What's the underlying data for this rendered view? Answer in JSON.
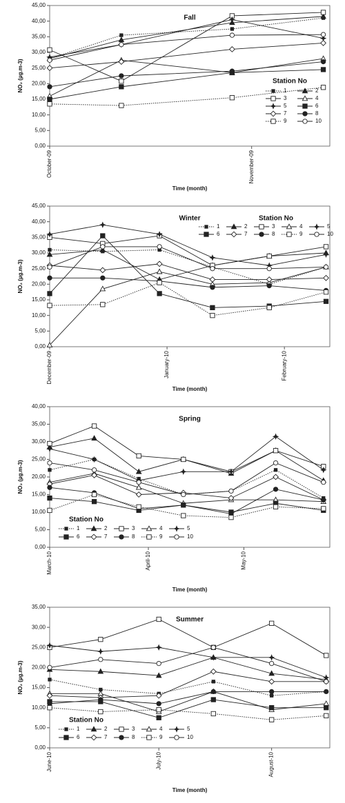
{
  "chart_data": [
    {
      "type": "line",
      "title": "Fall",
      "ylabel": "NO₂ (µg.m-3)",
      "xlabel": "Time (month)",
      "legend_title": "Station No",
      "legend": "lower right",
      "x": [
        0,
        11,
        28,
        42
      ],
      "xlim": [
        0,
        43
      ],
      "xticks": [
        {
          "value": 0,
          "label": "October-09"
        },
        {
          "value": 31,
          "label": "November-09"
        }
      ],
      "ylim": [
        0,
        45
      ],
      "yticks": [
        {
          "value": 0,
          "label": "0,00"
        },
        {
          "value": 5,
          "label": "5,00"
        },
        {
          "value": 10,
          "label": "10,00"
        },
        {
          "value": 15,
          "label": "15,00"
        },
        {
          "value": 20,
          "label": "20,00"
        },
        {
          "value": 25,
          "label": "25,00"
        },
        {
          "value": 30,
          "label": "30,00"
        },
        {
          "value": 35,
          "label": "35,00"
        },
        {
          "value": 40,
          "label": "40,00"
        },
        {
          "value": 45,
          "label": "45,00"
        }
      ],
      "series": [
        {
          "name": "1",
          "color": "#222222",
          "marker": "square-small",
          "dash": "dotted",
          "values": [
            28,
            35.5,
            37.5,
            41
          ]
        },
        {
          "name": "2",
          "color": "#222222",
          "marker": "triangle-filled",
          "dash": "solid",
          "values": [
            28,
            34,
            39.5,
            41.5
          ]
        },
        {
          "name": "3",
          "color": "#222222",
          "marker": "square-open",
          "dash": "solid",
          "values": [
            30.8,
            20.8,
            41.7,
            42.8
          ]
        },
        {
          "name": "4",
          "color": "#222222",
          "marker": "triangle-open",
          "dash": "solid",
          "values": [
            16,
            27.5,
            23.5,
            28
          ]
        },
        {
          "name": "5",
          "color": "#222222",
          "marker": "star",
          "dash": "solid",
          "values": [
            28.5,
            32.5,
            40.5,
            34.5
          ]
        },
        {
          "name": "6",
          "color": "#222222",
          "marker": "square-filled",
          "dash": "solid",
          "values": [
            15,
            19,
            23.5,
            24.5
          ]
        },
        {
          "name": "7",
          "color": "#222222",
          "marker": "diamond-open",
          "dash": "solid",
          "values": [
            25,
            27,
            31,
            33
          ]
        },
        {
          "name": "8",
          "color": "#222222",
          "marker": "circle-filled",
          "dash": "solid",
          "values": [
            19,
            22.5,
            24,
            27
          ]
        },
        {
          "name": "9",
          "color": "#222222",
          "marker": "square-open",
          "dash": "dotted",
          "values": [
            13.5,
            13,
            15.5,
            18.8
          ]
        },
        {
          "name": "10",
          "color": "#222222",
          "marker": "circle-open",
          "dash": "solid",
          "values": [
            27.5,
            32.5,
            35.5,
            35.7
          ]
        }
      ]
    },
    {
      "type": "line",
      "title": "Winter",
      "ylabel": "NO₂ (µg.m-3)",
      "xlabel": "Time (month)",
      "legend_title": "Station No",
      "legend": "upper right",
      "x": [
        0,
        14,
        29,
        43,
        58,
        73
      ],
      "xlim": [
        0,
        74
      ],
      "xticks": [
        {
          "value": 0,
          "label": "December-09"
        },
        {
          "value": 31,
          "label": "January-10"
        },
        {
          "value": 62,
          "label": "February-10"
        }
      ],
      "ylim": [
        0,
        45
      ],
      "yticks": [
        {
          "value": 0,
          "label": "0,00"
        },
        {
          "value": 5,
          "label": "5,00"
        },
        {
          "value": 10,
          "label": "10,00"
        },
        {
          "value": 15,
          "label": "15,00"
        },
        {
          "value": 20,
          "label": "20,00"
        },
        {
          "value": 25,
          "label": "25,00"
        },
        {
          "value": 30,
          "label": "30,00"
        },
        {
          "value": 35,
          "label": "35,00"
        },
        {
          "value": 40,
          "label": "40,00"
        },
        {
          "value": 45,
          "label": "45,00"
        }
      ],
      "series": [
        {
          "name": "1",
          "color": "#222222",
          "marker": "square-small",
          "dash": "dotted",
          "values": [
            31,
            30.5,
            31,
            25.5,
            20,
            25.5
          ]
        },
        {
          "name": "2",
          "color": "#222222",
          "marker": "triangle-filled",
          "dash": "solid",
          "values": [
            29.5,
            31,
            21.5,
            26,
            29,
            30
          ]
        },
        {
          "name": "3",
          "color": "#222222",
          "marker": "square-open",
          "dash": "solid",
          "values": [
            35,
            33,
            35.5,
            26,
            29,
            32
          ]
        },
        {
          "name": "4",
          "color": "#222222",
          "marker": "triangle-open",
          "dash": "solid",
          "values": [
            0.5,
            18.5,
            24,
            20,
            20.5,
            25.5
          ]
        },
        {
          "name": "5",
          "color": "#222222",
          "marker": "star",
          "dash": "solid",
          "values": [
            36,
            39,
            36,
            28.5,
            26,
            29.5
          ]
        },
        {
          "name": "6",
          "color": "#222222",
          "marker": "square-filled",
          "dash": "solid",
          "values": [
            17,
            35.5,
            17,
            12.5,
            13,
            14.5
          ]
        },
        {
          "name": "7",
          "color": "#222222",
          "marker": "diamond-open",
          "dash": "solid",
          "values": [
            26,
            24.5,
            26.5,
            21.5,
            21.5,
            22
          ]
        },
        {
          "name": "8",
          "color": "#222222",
          "marker": "circle-filled",
          "dash": "solid",
          "values": [
            22,
            22,
            21,
            19,
            19.5,
            18
          ]
        },
        {
          "name": "9",
          "color": "#222222",
          "marker": "square-open",
          "dash": "dotted",
          "values": [
            13.2,
            13.5,
            20.5,
            10,
            12.5,
            17.5
          ]
        },
        {
          "name": "10",
          "color": "#222222",
          "marker": "circle-open",
          "dash": "solid",
          "values": [
            25.5,
            32,
            32,
            25,
            25,
            25.5
          ]
        }
      ]
    },
    {
      "type": "line",
      "title": "Spring",
      "ylabel": "NO₂ (µg.m-3)",
      "xlabel": "Time (month)",
      "legend_title": "Station No",
      "legend": "lower left",
      "x": [
        0,
        14,
        28,
        42,
        57,
        71,
        86
      ],
      "xlim": [
        0,
        88
      ],
      "xticks": [
        {
          "value": 0,
          "label": "March-10"
        },
        {
          "value": 31,
          "label": "April-10"
        },
        {
          "value": 61,
          "label": "May-10"
        }
      ],
      "ylim": [
        0,
        40
      ],
      "yticks": [
        {
          "value": 0,
          "label": "0,00"
        },
        {
          "value": 5,
          "label": "5,00"
        },
        {
          "value": 10,
          "label": "10,00"
        },
        {
          "value": 15,
          "label": "15,00"
        },
        {
          "value": 20,
          "label": "20,00"
        },
        {
          "value": 25,
          "label": "25,00"
        },
        {
          "value": 30,
          "label": "30,00"
        },
        {
          "value": 35,
          "label": "35,00"
        },
        {
          "value": 40,
          "label": "40,00"
        }
      ],
      "series": [
        {
          "name": "1",
          "color": "#222222",
          "marker": "square-small",
          "dash": "dotted",
          "values": [
            22,
            25,
            19.5,
            15,
            16,
            22,
            14
          ]
        },
        {
          "name": "2",
          "color": "#222222",
          "marker": "triangle-filled",
          "dash": "solid",
          "values": [
            28.5,
            31,
            21.5,
            25,
            21,
            27.5,
            19
          ]
        },
        {
          "name": "3",
          "color": "#222222",
          "marker": "square-open",
          "dash": "solid",
          "values": [
            29.5,
            34.5,
            26,
            25,
            21.5,
            27.5,
            23
          ]
        },
        {
          "name": "4",
          "color": "#222222",
          "marker": "triangle-open",
          "dash": "solid",
          "values": [
            18.5,
            21,
            17,
            12.5,
            13.5,
            13.5,
            13
          ]
        },
        {
          "name": "5",
          "color": "#222222",
          "marker": "star",
          "dash": "solid",
          "values": [
            28,
            25,
            19,
            21.5,
            21.5,
            31.5,
            22
          ]
        },
        {
          "name": "6",
          "color": "#222222",
          "marker": "square-filled",
          "dash": "solid",
          "values": [
            14,
            13,
            10.5,
            12,
            10,
            12.5,
            10.5
          ]
        },
        {
          "name": "7",
          "color": "#222222",
          "marker": "diamond-open",
          "dash": "solid",
          "values": [
            18,
            20.5,
            15,
            15.5,
            14,
            20,
            13.5
          ]
        },
        {
          "name": "8",
          "color": "#222222",
          "marker": "circle-filled",
          "dash": "solid",
          "values": [
            17,
            15.5,
            11,
            12,
            9.5,
            16.5,
            13.5
          ]
        },
        {
          "name": "9",
          "color": "#222222",
          "marker": "square-open",
          "dash": "dotted",
          "values": [
            10.5,
            15,
            11.5,
            9,
            8.5,
            11.5,
            11
          ]
        },
        {
          "name": "10",
          "color": "#222222",
          "marker": "circle-open",
          "dash": "solid",
          "values": [
            24,
            22,
            18.5,
            15,
            16,
            24,
            18.5
          ]
        }
      ]
    },
    {
      "type": "line",
      "title": "Summer",
      "ylabel": "NO₂ (µg.m-3)",
      "xlabel": "Time (month)",
      "legend_title": "Station No",
      "legend": "lower left",
      "x": [
        0,
        14,
        30,
        45,
        61,
        76
      ],
      "xlim": [
        0,
        77
      ],
      "xticks": [
        {
          "value": 0,
          "label": "June-10"
        },
        {
          "value": 30,
          "label": "July-10"
        },
        {
          "value": 61,
          "label": "August-10"
        }
      ],
      "ylim": [
        0,
        35
      ],
      "yticks": [
        {
          "value": 0,
          "label": "0,00"
        },
        {
          "value": 5,
          "label": "5,00"
        },
        {
          "value": 10,
          "label": "10,00"
        },
        {
          "value": 15,
          "label": "15,00"
        },
        {
          "value": 20,
          "label": "20,00"
        },
        {
          "value": 25,
          "label": "25,00"
        },
        {
          "value": 30,
          "label": "30,00"
        },
        {
          "value": 35,
          "label": "35,00"
        }
      ],
      "series": [
        {
          "name": "1",
          "color": "#222222",
          "marker": "square-small",
          "dash": "dotted",
          "values": [
            17,
            14.5,
            13.5,
            16.5,
            13,
            14
          ]
        },
        {
          "name": "2",
          "color": "#222222",
          "marker": "triangle-filled",
          "dash": "solid",
          "values": [
            19.5,
            19,
            18,
            22.5,
            18.5,
            17
          ]
        },
        {
          "name": "3",
          "color": "#222222",
          "marker": "square-open",
          "dash": "solid",
          "values": [
            25,
            27,
            32,
            25,
            31,
            23
          ]
        },
        {
          "name": "4",
          "color": "#222222",
          "marker": "triangle-open",
          "dash": "solid",
          "values": [
            13.5,
            13.5,
            9,
            14,
            9.5,
            11
          ]
        },
        {
          "name": "5",
          "color": "#222222",
          "marker": "star",
          "dash": "solid",
          "values": [
            25.5,
            24,
            25,
            22.5,
            22.5,
            17.5
          ]
        },
        {
          "name": "6",
          "color": "#222222",
          "marker": "square-filled",
          "dash": "solid",
          "values": [
            11.5,
            11.5,
            7.5,
            12,
            10,
            10
          ]
        },
        {
          "name": "7",
          "color": "#222222",
          "marker": "diamond-open",
          "dash": "solid",
          "values": [
            13,
            12.5,
            13,
            19,
            16.5,
            16.5
          ]
        },
        {
          "name": "8",
          "color": "#222222",
          "marker": "circle-filled",
          "dash": "solid",
          "values": [
            11,
            12,
            11,
            14,
            14,
            14
          ]
        },
        {
          "name": "9",
          "color": "#222222",
          "marker": "square-open",
          "dash": "dotted",
          "values": [
            10,
            9,
            9.5,
            8.5,
            7,
            8
          ]
        },
        {
          "name": "10",
          "color": "#222222",
          "marker": "circle-open",
          "dash": "solid",
          "values": [
            20,
            22,
            21,
            25,
            21,
            16.5
          ]
        }
      ]
    }
  ]
}
